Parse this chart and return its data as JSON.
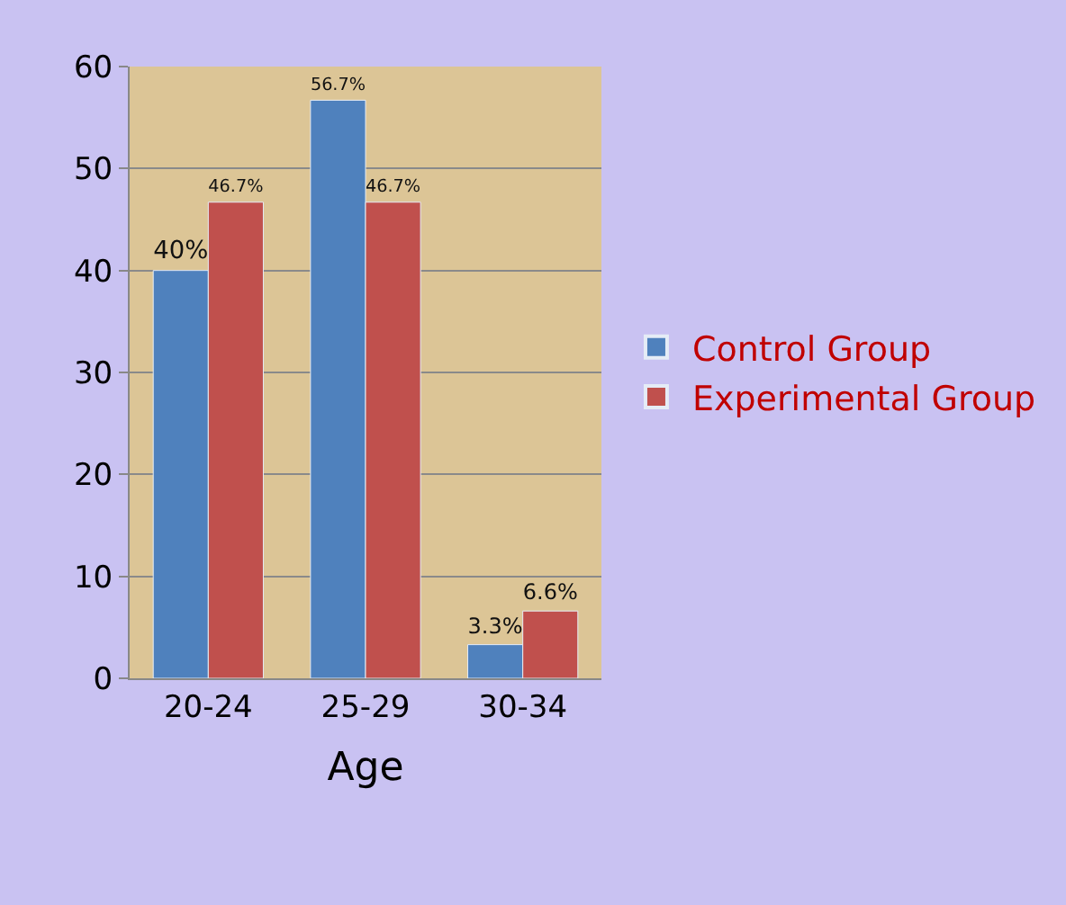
{
  "chart_data": {
    "type": "bar",
    "xlabel": "Age",
    "categories": [
      "20-24",
      "25-29",
      "30-34"
    ],
    "series": [
      {
        "name": "Control Group",
        "color": "#4f81bd",
        "values": [
          40,
          56.7,
          3.3
        ],
        "value_labels": [
          "40%",
          "56.7%",
          "3.3%"
        ]
      },
      {
        "name": "Experimental Group",
        "color": "#c0504d",
        "values": [
          46.7,
          46.7,
          6.6
        ],
        "value_labels": [
          "46.7%",
          "46.7%",
          "6.6%"
        ]
      }
    ],
    "ylim": [
      0,
      60
    ],
    "yticks": [
      0,
      10,
      20,
      30,
      40,
      50,
      60
    ],
    "grid": "y",
    "legend": "right"
  }
}
